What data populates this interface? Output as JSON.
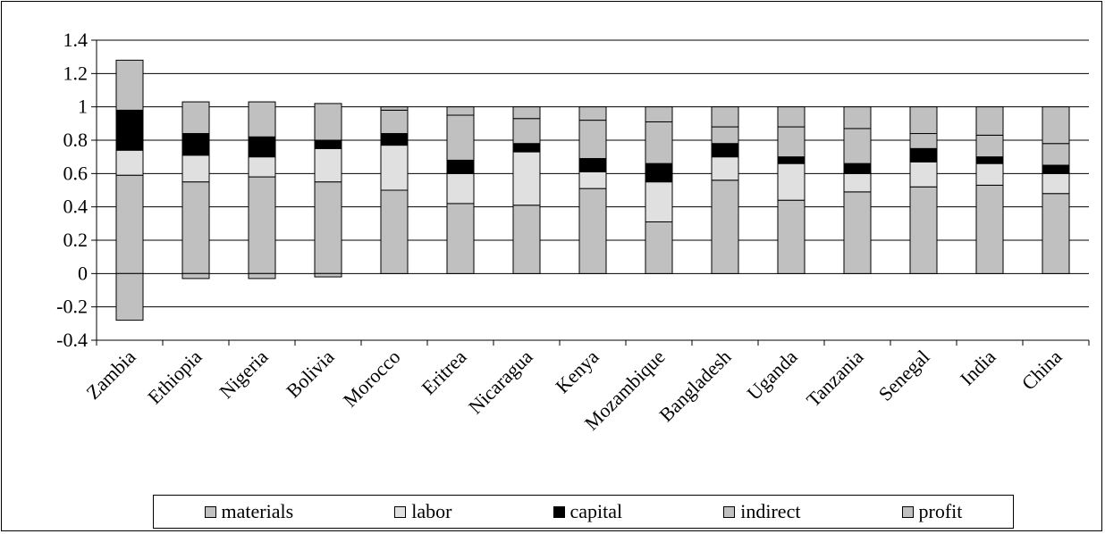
{
  "chart_data": {
    "type": "bar",
    "stacked": true,
    "categories": [
      "Zambia",
      "Ethiopia",
      "Nigeria",
      "Bolivia",
      "Morocco",
      "Eritrea",
      "Nicaragua",
      "Kenya",
      "Mozambique",
      "Bangladesh",
      "Uganda",
      "Tanzania",
      "Senegal",
      "India",
      "China"
    ],
    "series": [
      {
        "name": "materials",
        "color": "#c0c0c0",
        "values": [
          0.59,
          0.55,
          0.58,
          0.55,
          0.5,
          0.42,
          0.41,
          0.51,
          0.31,
          0.56,
          0.44,
          0.49,
          0.52,
          0.53,
          0.48
        ]
      },
      {
        "name": "labor",
        "color": "#e0e0e0",
        "values": [
          0.15,
          0.16,
          0.12,
          0.2,
          0.27,
          0.18,
          0.32,
          0.1,
          0.24,
          0.14,
          0.22,
          0.11,
          0.15,
          0.13,
          0.12
        ]
      },
      {
        "name": "capital",
        "color": "#000000",
        "values": [
          0.24,
          0.13,
          0.12,
          0.05,
          0.07,
          0.08,
          0.05,
          0.08,
          0.11,
          0.08,
          0.04,
          0.06,
          0.08,
          0.04,
          0.05
        ]
      },
      {
        "name": "indirect",
        "color": "#c0c0c0",
        "values": [
          0.3,
          0.19,
          0.21,
          0.22,
          0.14,
          0.27,
          0.15,
          0.23,
          0.25,
          0.1,
          0.18,
          0.21,
          0.09,
          0.13,
          0.13
        ]
      },
      {
        "name": "profit",
        "color": "#c0c0c0",
        "values": [
          -0.28,
          -0.03,
          -0.03,
          -0.02,
          0.02,
          0.05,
          0.07,
          0.08,
          0.09,
          0.12,
          0.12,
          0.13,
          0.16,
          0.17,
          0.22
        ]
      }
    ],
    "ylim": [
      -0.4,
      1.4
    ],
    "yticks": [
      "-0.4",
      "-0.2",
      "0",
      "0.2",
      "0.4",
      "0.6",
      "0.8",
      "1",
      "1.2",
      "1.4"
    ],
    "grid": true,
    "legend_position": "bottom",
    "title": "",
    "xlabel": "",
    "ylabel": ""
  }
}
